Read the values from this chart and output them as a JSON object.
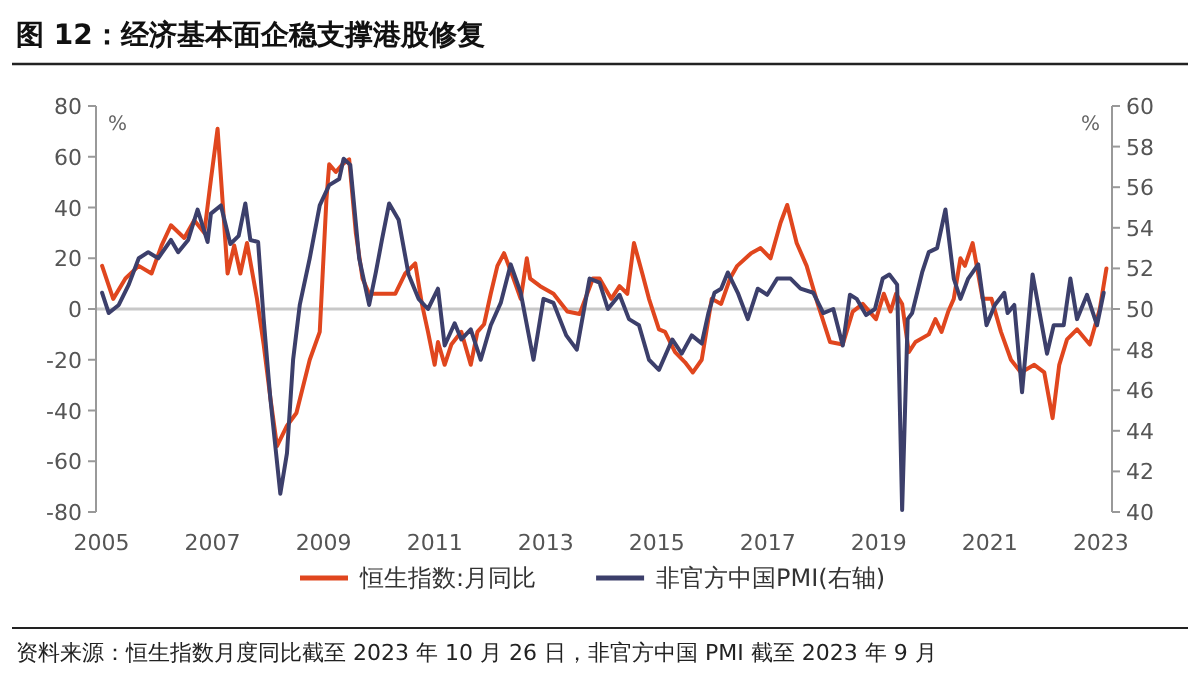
{
  "chart_data": {
    "type": "line",
    "title": "图 12：经济基本面企稳支撑港股修复",
    "annotations": [
      "资料来源：恒生指数月度同比截至 2023 年 10 月 26 日，非官方中国 PMI 截至 2023 年 9 月"
    ],
    "ylabel": "%",
    "y2label": "%",
    "xlim": [
      2004.9,
      2023.2
    ],
    "xticks": [
      2005,
      2007,
      2009,
      2011,
      2013,
      2015,
      2017,
      2019,
      2021,
      2023
    ],
    "ylim": [
      -80,
      80
    ],
    "yticks": [
      -80,
      -60,
      -40,
      -20,
      0,
      20,
      40,
      60,
      80
    ],
    "y2lim": [
      40,
      60
    ],
    "y2ticks": [
      40,
      42,
      44,
      46,
      48,
      50,
      52,
      54,
      56,
      58,
      60
    ],
    "ref_lines": [
      {
        "axis": "y",
        "value": 0,
        "color": "#c8c8c8"
      }
    ],
    "legend": "bottom",
    "series": [
      {
        "name": "恒生指数:月同比",
        "color": "#e0461e",
        "axis": "y",
        "x": [
          2005.01,
          2005.21,
          2005.43,
          2005.67,
          2005.9,
          2006.08,
          2006.25,
          2006.49,
          2006.67,
          2006.85,
          2006.97,
          2007.09,
          2007.27,
          2007.39,
          2007.5,
          2007.62,
          2007.8,
          2007.92,
          2008.04,
          2008.16,
          2008.34,
          2008.51,
          2008.75,
          2008.93,
          2009.05,
          2009.1,
          2009.22,
          2009.34,
          2009.46,
          2009.58,
          2009.7,
          2009.82,
          2010.05,
          2010.29,
          2010.47,
          2010.65,
          2010.77,
          2010.88,
          2011.0,
          2011.06,
          2011.18,
          2011.3,
          2011.48,
          2011.65,
          2011.77,
          2011.89,
          2012.01,
          2012.13,
          2012.25,
          2012.42,
          2012.55,
          2012.66,
          2012.72,
          2012.9,
          2013.14,
          2013.39,
          2013.61,
          2013.85,
          2013.97,
          2014.18,
          2014.33,
          2014.47,
          2014.59,
          2014.74,
          2014.86,
          2015.04,
          2015.15,
          2015.33,
          2015.51,
          2015.65,
          2015.81,
          2015.99,
          2016.16,
          2016.32,
          2016.45,
          2016.7,
          2016.87,
          2017.05,
          2017.23,
          2017.35,
          2017.52,
          2017.7,
          2017.9,
          2018.12,
          2018.35,
          2018.53,
          2018.71,
          2018.95,
          2019.09,
          2019.21,
          2019.31,
          2019.42,
          2019.54,
          2019.66,
          2019.9,
          2020.02,
          2020.13,
          2020.25,
          2020.35,
          2020.47,
          2020.55,
          2020.69,
          2020.87,
          2021.03,
          2021.2,
          2021.38,
          2021.56,
          2021.8,
          2021.98,
          2022.13,
          2022.25,
          2022.39,
          2022.57,
          2022.8,
          2022.98,
          2023.1
        ],
        "values": [
          17,
          4,
          12,
          17,
          14,
          25,
          33,
          28,
          35,
          30,
          51,
          71,
          14,
          25,
          14,
          26,
          4,
          -14,
          -35,
          -54,
          -46,
          -41,
          -20,
          -9,
          43,
          57,
          54,
          57,
          59,
          30,
          12,
          6,
          6,
          6,
          14,
          18,
          2,
          -9,
          -22,
          -13,
          -22,
          -14,
          -9,
          -22,
          -9,
          -6,
          6,
          17,
          22,
          12,
          4,
          20,
          12,
          9,
          6,
          -1,
          -2,
          12,
          12,
          4,
          9,
          6,
          26,
          14,
          4,
          -8,
          -9,
          -17,
          -21,
          -25,
          -20,
          4,
          2,
          12,
          17,
          22,
          24,
          20,
          34,
          41,
          26,
          17,
          2,
          -13,
          -14,
          -1,
          2,
          -4,
          6,
          -1,
          6,
          2,
          -17,
          -13,
          -10,
          -4,
          -9,
          -1,
          4,
          20,
          17,
          26,
          4,
          4,
          -9,
          -20,
          -25,
          -22,
          -25,
          -43,
          -22,
          -12,
          -8,
          -14,
          0,
          16
        ]
      },
      {
        "name": "非官方中国PMI(右轴)",
        "color": "#3c3f6b",
        "axis": "y2",
        "x": [
          2005.01,
          2005.13,
          2005.31,
          2005.49,
          2005.67,
          2005.84,
          2006.02,
          2006.25,
          2006.38,
          2006.56,
          2006.73,
          2006.91,
          2006.97,
          2007.15,
          2007.32,
          2007.47,
          2007.59,
          2007.68,
          2007.82,
          2007.92,
          2008.04,
          2008.22,
          2008.34,
          2008.45,
          2008.57,
          2008.75,
          2008.93,
          2009.1,
          2009.28,
          2009.36,
          2009.48,
          2009.64,
          2009.82,
          2009.94,
          2010.05,
          2010.18,
          2010.35,
          2010.53,
          2010.71,
          2010.88,
          2011.06,
          2011.18,
          2011.36,
          2011.48,
          2011.65,
          2011.83,
          2012.01,
          2012.19,
          2012.37,
          2012.55,
          2012.78,
          2012.96,
          2013.14,
          2013.37,
          2013.56,
          2013.79,
          2013.97,
          2014.12,
          2014.33,
          2014.5,
          2014.68,
          2014.86,
          2015.04,
          2015.28,
          2015.45,
          2015.63,
          2015.81,
          2015.93,
          2016.04,
          2016.16,
          2016.28,
          2016.46,
          2016.64,
          2016.82,
          2016.99,
          2017.17,
          2017.41,
          2017.59,
          2017.82,
          2018.0,
          2018.18,
          2018.35,
          2018.48,
          2018.6,
          2018.77,
          2018.93,
          2019.07,
          2019.19,
          2019.33,
          2019.42,
          2019.52,
          2019.6,
          2019.78,
          2019.9,
          2020.05,
          2020.2,
          2020.35,
          2020.47,
          2020.61,
          2020.79,
          2020.94,
          2021.09,
          2021.26,
          2021.32,
          2021.44,
          2021.58,
          2021.77,
          2022.03,
          2022.15,
          2022.33,
          2022.45,
          2022.57,
          2022.75,
          2022.93,
          2023.05
        ],
        "values": [
          50.8,
          49.8,
          50.2,
          51.2,
          52.5,
          52.8,
          52.5,
          53.4,
          52.8,
          53.4,
          54.9,
          53.3,
          54.7,
          55.1,
          53.2,
          53.6,
          55.2,
          53.4,
          53.3,
          49.5,
          45.6,
          40.9,
          42.9,
          47.5,
          50.2,
          52.5,
          55.1,
          56.1,
          56.4,
          57.4,
          57.1,
          52.5,
          50.2,
          51.8,
          53.4,
          55.2,
          54.4,
          51.7,
          50.5,
          50.0,
          51.0,
          48.2,
          49.3,
          48.5,
          49.0,
          47.5,
          49.2,
          50.3,
          52.2,
          50.8,
          47.5,
          50.5,
          50.3,
          48.7,
          48.0,
          51.5,
          51.3,
          50.0,
          50.7,
          49.5,
          49.2,
          47.5,
          47.0,
          48.5,
          47.8,
          48.7,
          48.3,
          49.8,
          50.8,
          51.0,
          51.8,
          50.8,
          49.5,
          51.0,
          50.7,
          51.5,
          51.5,
          51.0,
          50.8,
          49.8,
          50.0,
          48.2,
          50.7,
          50.5,
          49.7,
          50.0,
          51.5,
          51.7,
          51.2,
          40.1,
          49.5,
          49.8,
          51.8,
          52.8,
          53.0,
          54.9,
          51.5,
          50.5,
          51.5,
          52.2,
          49.2,
          50.2,
          50.8,
          49.8,
          50.2,
          45.9,
          51.7,
          47.8,
          49.2,
          49.2,
          51.5,
          49.5,
          50.7,
          49.2,
          50.8
        ]
      }
    ]
  }
}
